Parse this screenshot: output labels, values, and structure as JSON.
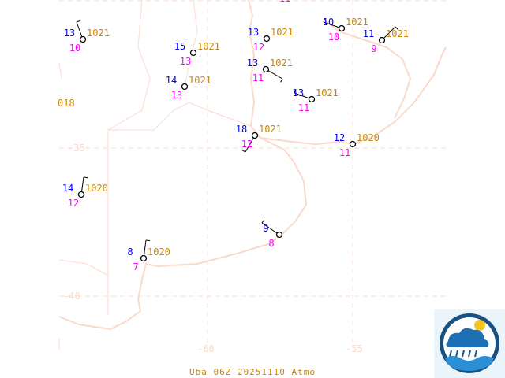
{
  "footer": "Uba 06Z 20251110 Atmo",
  "grid_labels": {
    "lat_35": "-35",
    "lat_40": "-40",
    "lon_60": "-60",
    "lon_55": "-55"
  },
  "colors": {
    "temperature": "#0000ff",
    "pressure": "#c8860a",
    "dewpoint": "#ff00ff",
    "coast": "#fbd9cc",
    "station": "#000000"
  },
  "partial_labels": {
    "left_pressure": "018",
    "top_dewpoint": "11"
  },
  "stations": [
    {
      "temp": "13",
      "pressure": "1021",
      "dewpoint": "10"
    },
    {
      "temp": "15",
      "pressure": "1021",
      "dewpoint": "13"
    },
    {
      "temp": "14",
      "pressure": "1021",
      "dewpoint": "13"
    },
    {
      "temp": "13",
      "pressure": "1021",
      "dewpoint": "12"
    },
    {
      "temp": "13",
      "pressure": "1021",
      "dewpoint": "11"
    },
    {
      "temp": "13",
      "pressure": "1021",
      "dewpoint": "11"
    },
    {
      "temp": "18",
      "pressure": "1021",
      "dewpoint": "12"
    },
    {
      "temp": "10",
      "pressure": "1021",
      "dewpoint": "10"
    },
    {
      "temp": "11",
      "pressure": "1021",
      "dewpoint": "9"
    },
    {
      "temp": "12",
      "pressure": "1020",
      "dewpoint": "11"
    },
    {
      "temp": "14",
      "pressure": "1020",
      "dewpoint": "12"
    },
    {
      "temp": "8",
      "pressure": "1020",
      "dewpoint": "7"
    },
    {
      "temp": "9",
      "pressure": "",
      "dewpoint": "8"
    }
  ],
  "logo": {
    "icon": "weather-service-logo"
  }
}
